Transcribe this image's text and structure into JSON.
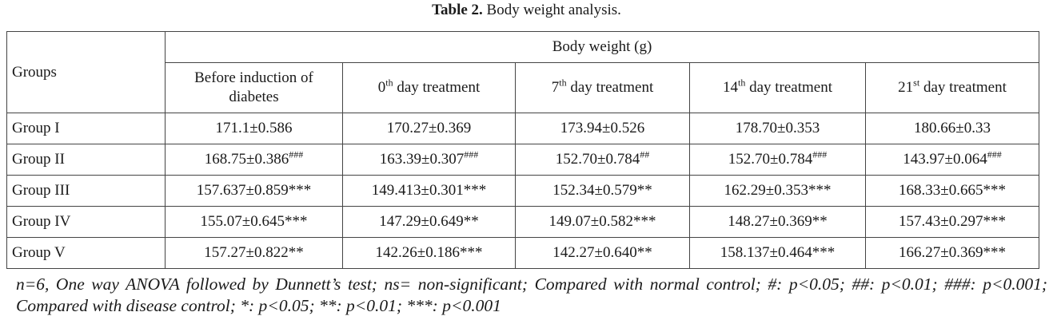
{
  "caption": {
    "label": "Table 2.",
    "text": "Body weight analysis."
  },
  "table": {
    "row_header": "Groups",
    "super_header": "Body weight (g)",
    "columns": [
      {
        "main": "Before induction of diabetes",
        "sup": "",
        "rest": ""
      },
      {
        "main": "0",
        "sup": "th",
        "rest": " day treatment"
      },
      {
        "main": "7",
        "sup": "th",
        "rest": " day treatment"
      },
      {
        "main": "14",
        "sup": "th",
        "rest": " day treatment"
      },
      {
        "main": "21",
        "sup": "st",
        "rest": " day treatment"
      }
    ],
    "rows": [
      {
        "group": "Group I",
        "cells": [
          {
            "value": "171.1±0.586",
            "sig": ""
          },
          {
            "value": "170.27±0.369",
            "sig": ""
          },
          {
            "value": "173.94±0.526",
            "sig": ""
          },
          {
            "value": "178.70±0.353",
            "sig": ""
          },
          {
            "value": "180.66±0.33",
            "sig": ""
          }
        ]
      },
      {
        "group": "Group II",
        "cells": [
          {
            "value": "168.75±0.386",
            "sig": "###"
          },
          {
            "value": "163.39±0.307",
            "sig": "###"
          },
          {
            "value": "152.70±0.784",
            "sig": "##"
          },
          {
            "value": "152.70±0.784",
            "sig": "###"
          },
          {
            "value": "143.97±0.064",
            "sig": "###"
          }
        ]
      },
      {
        "group": "Group III",
        "cells": [
          {
            "value": "157.637±0.859***",
            "sig": ""
          },
          {
            "value": "149.413±0.301***",
            "sig": ""
          },
          {
            "value": "152.34±0.579**",
            "sig": ""
          },
          {
            "value": "162.29±0.353***",
            "sig": ""
          },
          {
            "value": "168.33±0.665***",
            "sig": ""
          }
        ]
      },
      {
        "group": "Group IV",
        "cells": [
          {
            "value": "155.07±0.645***",
            "sig": ""
          },
          {
            "value": "147.29±0.649**",
            "sig": ""
          },
          {
            "value": "149.07±0.582***",
            "sig": ""
          },
          {
            "value": "148.27±0.369**",
            "sig": ""
          },
          {
            "value": "157.43±0.297***",
            "sig": ""
          }
        ]
      },
      {
        "group": "Group V",
        "cells": [
          {
            "value": "157.27±0.822**",
            "sig": ""
          },
          {
            "value": "142.26±0.186***",
            "sig": ""
          },
          {
            "value": "142.27±0.640**",
            "sig": ""
          },
          {
            "value": "158.137±0.464***",
            "sig": ""
          },
          {
            "value": "166.27±0.369***",
            "sig": ""
          }
        ]
      }
    ]
  },
  "footnote": "n=6, One way ANOVA followed by Dunnett’s test; ns= non-significant; Compared with normal control; #: p<0.05; ##: p<0.01; ###: p<0.001; Compared with disease control; *: p<0.05; **: p<0.01; ***: p<0.001"
}
